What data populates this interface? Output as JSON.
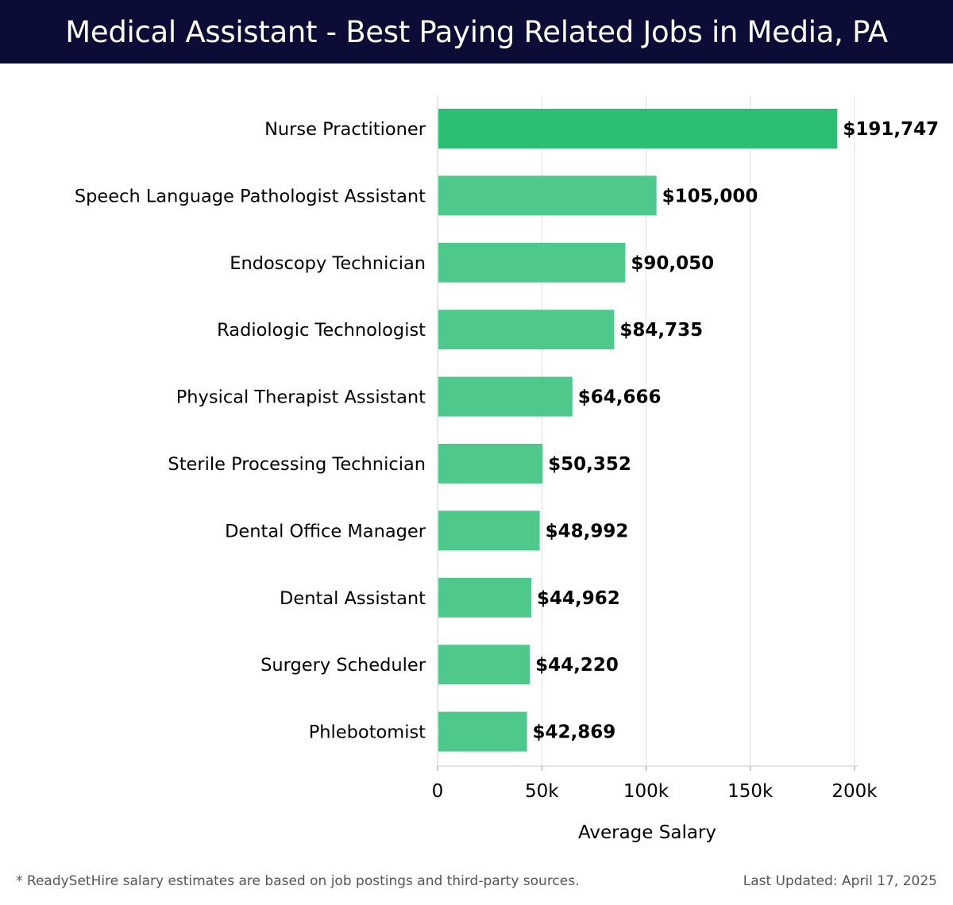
{
  "title": "Medical Assistant - Best Paying Related Jobs in Media, PA",
  "chart_data": {
    "type": "bar",
    "orientation": "horizontal",
    "categories": [
      "Nurse Practitioner",
      "Speech Language Pathologist Assistant",
      "Endoscopy Technician",
      "Radiologic Technologist",
      "Physical Therapist Assistant",
      "Sterile Processing Technician",
      "Dental Office Manager",
      "Dental Assistant",
      "Surgery Scheduler",
      "Phlebotomist"
    ],
    "values": [
      191747,
      105000,
      90050,
      84735,
      64666,
      50352,
      48992,
      44962,
      44220,
      42869
    ],
    "data_labels": [
      "$191,747",
      "$105,000",
      "$90,050",
      "$84,735",
      "$64,666",
      "$50,352",
      "$48,992",
      "$44,962",
      "$44,220",
      "$42,869"
    ],
    "xlabel": "Average Salary",
    "ylabel": "",
    "xlim": [
      0,
      200000
    ],
    "xticks": [
      0,
      50000,
      100000,
      150000,
      200000
    ],
    "xtick_labels": [
      "0",
      "50k",
      "100k",
      "150k",
      "200k"
    ],
    "grid": "vertical",
    "legend": "none",
    "colors": {
      "top_bar": "#2bbf74",
      "bar": "#4ec98b",
      "grid": "#e0e0e0",
      "label": "#000000"
    }
  },
  "footer": {
    "note": "* ReadySetHire salary estimates are based on job postings and third-party sources.",
    "updated": "Last Updated: April 17, 2025"
  }
}
